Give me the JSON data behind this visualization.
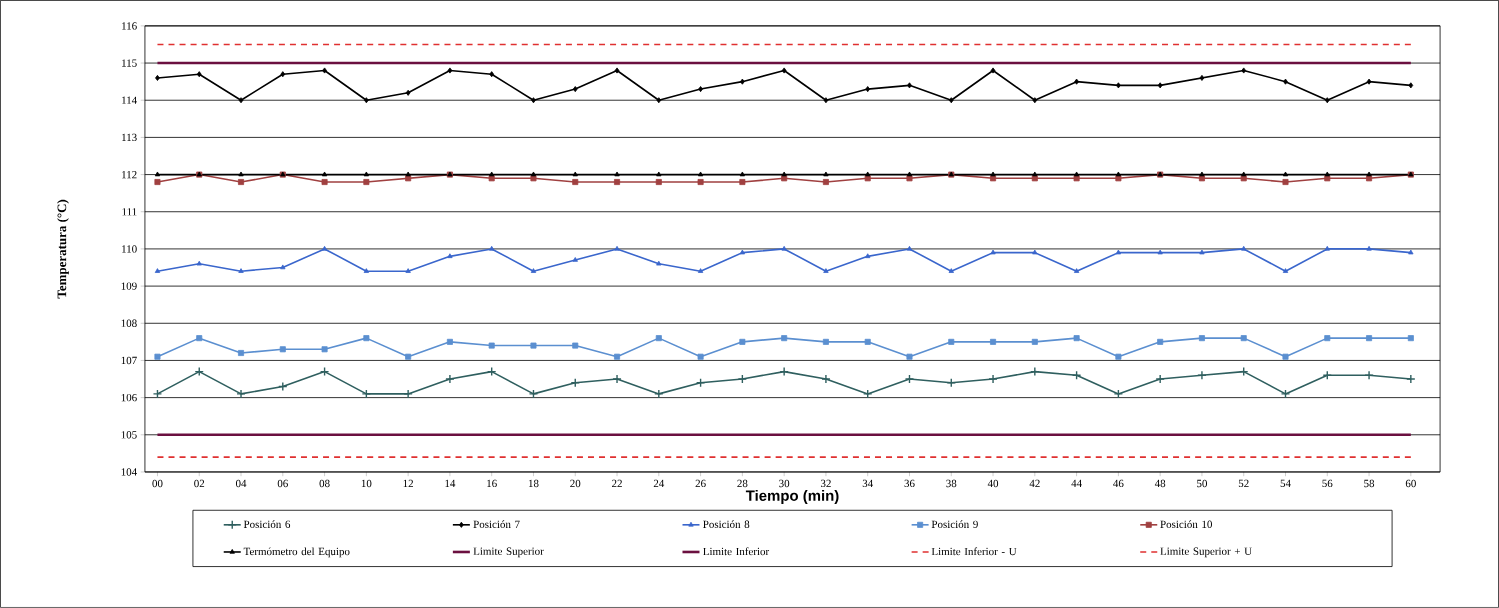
{
  "chart_data": {
    "type": "line",
    "xlabel": "Tiempo (min)",
    "ylabel": "Temperatura (°C)",
    "categories": [
      "00",
      "02",
      "04",
      "06",
      "08",
      "10",
      "12",
      "14",
      "16",
      "18",
      "20",
      "22",
      "24",
      "26",
      "28",
      "30",
      "32",
      "34",
      "36",
      "38",
      "40",
      "42",
      "44",
      "46",
      "48",
      "50",
      "52",
      "54",
      "56",
      "58",
      "60"
    ],
    "ylim": [
      104,
      116
    ],
    "yticks": [
      104,
      105,
      106,
      107,
      108,
      109,
      110,
      111,
      112,
      113,
      114,
      115,
      116
    ],
    "grid": "y",
    "legend": "bottom",
    "series": [
      {
        "name": "Posición 6",
        "color": "#2f5f5f",
        "marker": "cross",
        "values": [
          106.1,
          106.7,
          106.1,
          106.3,
          106.7,
          106.1,
          106.1,
          106.5,
          106.7,
          106.1,
          106.4,
          106.5,
          106.1,
          106.4,
          106.5,
          106.7,
          106.5,
          106.1,
          106.5,
          106.4,
          106.5,
          106.7,
          106.6,
          106.1,
          106.5,
          106.6,
          106.7,
          106.1,
          106.6,
          106.6,
          106.5
        ]
      },
      {
        "name": "Posición 7",
        "color": "#000000",
        "marker": "diamond",
        "values": [
          114.6,
          114.7,
          114.0,
          114.7,
          114.8,
          114.0,
          114.2,
          114.8,
          114.7,
          114.0,
          114.3,
          114.8,
          114.0,
          114.3,
          114.5,
          114.8,
          114.0,
          114.3,
          114.4,
          114.0,
          114.8,
          114.0,
          114.5,
          114.4,
          114.4,
          114.6,
          114.8,
          114.5,
          114.0,
          114.5,
          114.4
        ]
      },
      {
        "name": "Posición 8",
        "color": "#3a66cc",
        "marker": "triangle",
        "values": [
          109.4,
          109.6,
          109.4,
          109.5,
          110.0,
          109.4,
          109.4,
          109.8,
          110.0,
          109.4,
          109.7,
          110.0,
          109.6,
          109.4,
          109.9,
          110.0,
          109.4,
          109.8,
          110.0,
          109.4,
          109.9,
          109.9,
          109.4,
          109.9,
          109.9,
          109.9,
          110.0,
          109.4,
          110.0,
          110.0,
          109.9
        ]
      },
      {
        "name": "Posición 9",
        "color": "#5b8fd0",
        "marker": "square",
        "values": [
          107.1,
          107.6,
          107.2,
          107.3,
          107.3,
          107.6,
          107.1,
          107.5,
          107.4,
          107.4,
          107.4,
          107.1,
          107.6,
          107.1,
          107.5,
          107.6,
          107.5,
          107.5,
          107.1,
          107.5,
          107.5,
          107.5,
          107.6,
          107.1,
          107.5,
          107.6,
          107.6,
          107.1,
          107.6,
          107.6,
          107.6
        ]
      },
      {
        "name": "Posición 10",
        "color": "#a04040",
        "marker": "square",
        "values": [
          111.8,
          112.0,
          111.8,
          112.0,
          111.8,
          111.8,
          111.9,
          112.0,
          111.9,
          111.9,
          111.8,
          111.8,
          111.8,
          111.8,
          111.8,
          111.9,
          111.8,
          111.9,
          111.9,
          112.0,
          111.9,
          111.9,
          111.9,
          111.9,
          112.0,
          111.9,
          111.9,
          111.8,
          111.9,
          111.9,
          112.0
        ]
      },
      {
        "name": "Termómetro del Equipo",
        "color": "#000000",
        "marker": "triangle",
        "values": [
          112.0,
          112.0,
          112.0,
          112.0,
          112.0,
          112.0,
          112.0,
          112.0,
          112.0,
          112.0,
          112.0,
          112.0,
          112.0,
          112.0,
          112.0,
          112.0,
          112.0,
          112.0,
          112.0,
          112.0,
          112.0,
          112.0,
          112.0,
          112.0,
          112.0,
          112.0,
          112.0,
          112.0,
          112.0,
          112.0,
          112.0
        ]
      },
      {
        "name": "Limite Superior",
        "color": "#6b1040",
        "marker": "none",
        "line_style": "solid",
        "values": [
          115,
          115,
          115,
          115,
          115,
          115,
          115,
          115,
          115,
          115,
          115,
          115,
          115,
          115,
          115,
          115,
          115,
          115,
          115,
          115,
          115,
          115,
          115,
          115,
          115,
          115,
          115,
          115,
          115,
          115,
          115
        ]
      },
      {
        "name": "Limite Inferior",
        "color": "#6b1040",
        "marker": "none",
        "line_style": "solid",
        "values": [
          105,
          105,
          105,
          105,
          105,
          105,
          105,
          105,
          105,
          105,
          105,
          105,
          105,
          105,
          105,
          105,
          105,
          105,
          105,
          105,
          105,
          105,
          105,
          105,
          105,
          105,
          105,
          105,
          105,
          105,
          105
        ]
      },
      {
        "name": "Limite Inferior - U",
        "color": "#e03030",
        "marker": "none",
        "line_style": "dashed",
        "values": [
          104.4,
          104.4,
          104.4,
          104.4,
          104.4,
          104.4,
          104.4,
          104.4,
          104.4,
          104.4,
          104.4,
          104.4,
          104.4,
          104.4,
          104.4,
          104.4,
          104.4,
          104.4,
          104.4,
          104.4,
          104.4,
          104.4,
          104.4,
          104.4,
          104.4,
          104.4,
          104.4,
          104.4,
          104.4,
          104.4,
          104.4
        ]
      },
      {
        "name": "Limite Superior + U",
        "color": "#e03030",
        "marker": "none",
        "line_style": "dashed",
        "values": [
          115.5,
          115.5,
          115.5,
          115.5,
          115.5,
          115.5,
          115.5,
          115.5,
          115.5,
          115.5,
          115.5,
          115.5,
          115.5,
          115.5,
          115.5,
          115.5,
          115.5,
          115.5,
          115.5,
          115.5,
          115.5,
          115.5,
          115.5,
          115.5,
          115.5,
          115.5,
          115.5,
          115.5,
          115.5,
          115.5,
          115.5
        ]
      }
    ]
  }
}
